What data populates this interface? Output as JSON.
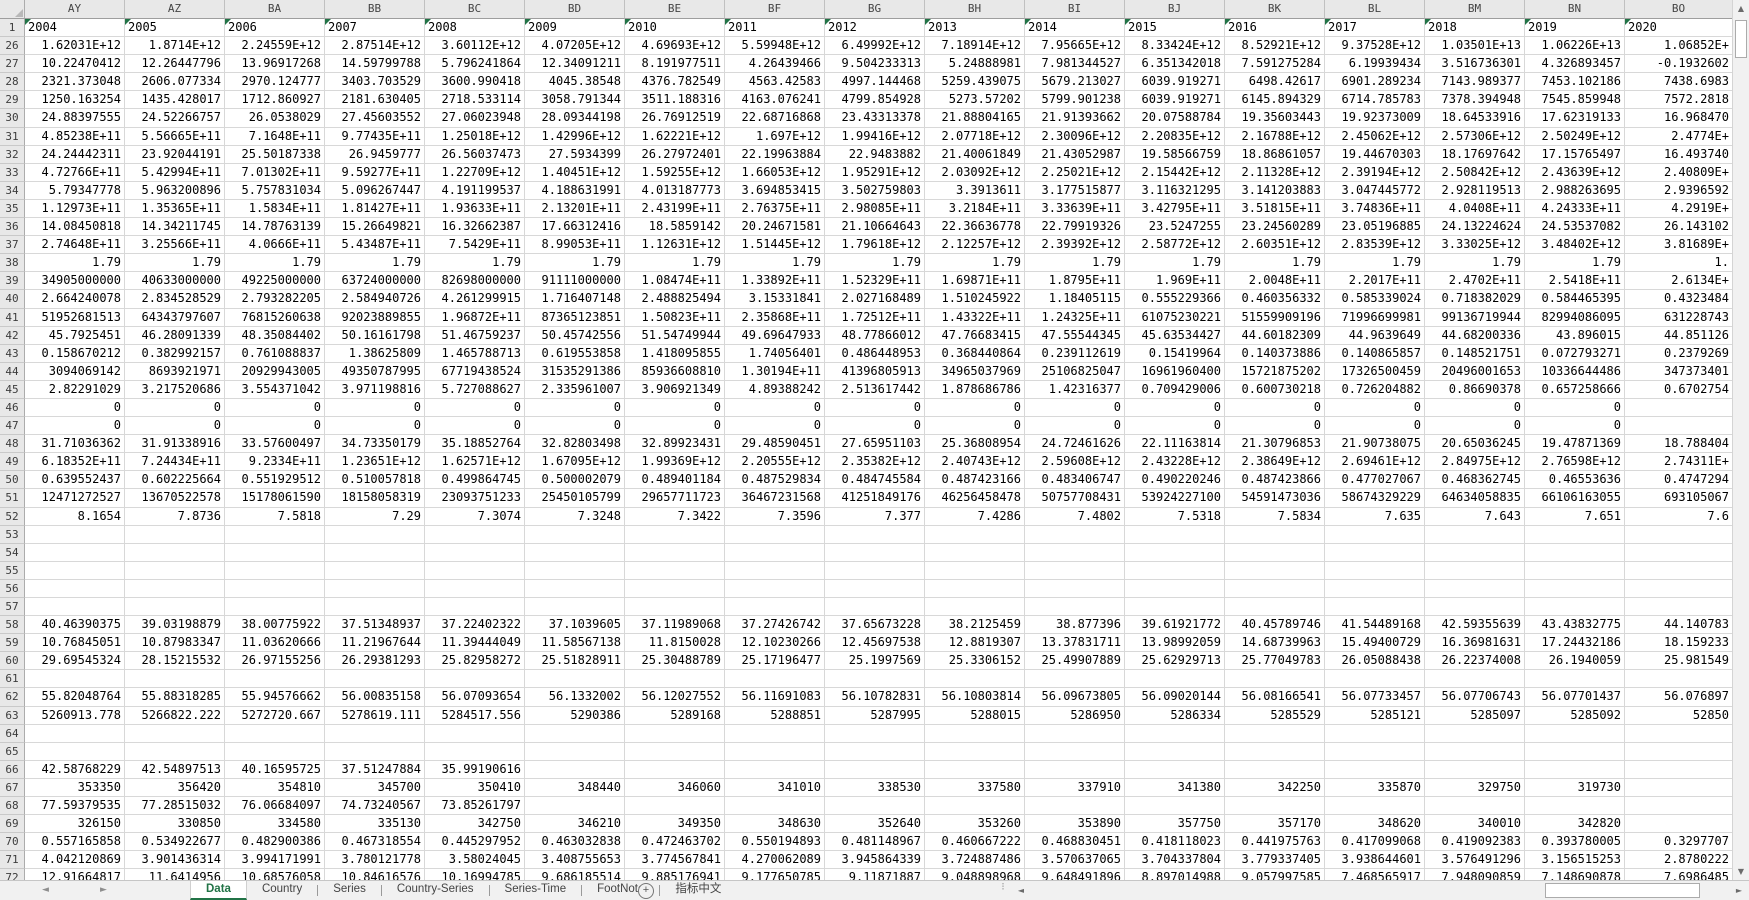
{
  "colors": {
    "accent_green": "#217346",
    "flag_triangle_green": "#217346",
    "header_bg": "#E8E8E8",
    "gridline": "#D8D8D8",
    "tabbar_bg": "#F1F1F1"
  },
  "icons": {
    "select_all_corner": "corner-triangle",
    "tab_nav_left": "◄",
    "tab_nav_right": "►",
    "add_sheet": "+",
    "scroll_up": "▲",
    "scroll_down": "▼",
    "scroll_left": "◄",
    "scroll_right": "►"
  },
  "tabs": {
    "items": [
      {
        "label": "Data",
        "active": true
      },
      {
        "label": "Country",
        "active": false
      },
      {
        "label": "Series",
        "active": false
      },
      {
        "label": "Country-Series",
        "active": false
      },
      {
        "label": "Series-Time",
        "active": false
      },
      {
        "label": "FootNote",
        "active": false
      },
      {
        "label": "指标中文",
        "active": false
      }
    ]
  },
  "sheet": {
    "column_letters": [
      "AY",
      "AZ",
      "BA",
      "BB",
      "BC",
      "BD",
      "BE",
      "BF",
      "BG",
      "BH",
      "BI",
      "BJ",
      "BK",
      "BL",
      "BM",
      "BN",
      "BO"
    ],
    "header_row": {
      "number": "1",
      "has_flag": true,
      "years": [
        "2004",
        "2005",
        "2006",
        "2007",
        "2008",
        "2009",
        "2010",
        "2011",
        "2012",
        "2013",
        "2014",
        "2015",
        "2016",
        "2017",
        "2018",
        "2019",
        "2020"
      ]
    },
    "rows": [
      {
        "n": "26",
        "cells": [
          "1.62031E+12",
          "1.8714E+12",
          "2.24559E+12",
          "2.87514E+12",
          "3.60112E+12",
          "4.07205E+12",
          "4.69693E+12",
          "5.59948E+12",
          "6.49992E+12",
          "7.18914E+12",
          "7.95665E+12",
          "8.33424E+12",
          "8.52921E+12",
          "9.37528E+12",
          "1.03501E+13",
          "1.06226E+13",
          "1.06852E+"
        ]
      },
      {
        "n": "27",
        "cells": [
          "10.22470412",
          "12.26447796",
          "13.96917268",
          "14.59799788",
          "5.796241864",
          "12.34091211",
          "8.191977511",
          "4.26439466",
          "9.504233313",
          "5.24888981",
          "7.981344527",
          "6.351342018",
          "7.591275284",
          "6.19939434",
          "3.516736301",
          "4.326893457",
          "-0.1932602"
        ]
      },
      {
        "n": "28",
        "cells": [
          "2321.373048",
          "2606.077334",
          "2970.124777",
          "3403.703529",
          "3600.990418",
          "4045.38548",
          "4376.782549",
          "4563.42583",
          "4997.144468",
          "5259.439075",
          "5679.213027",
          "6039.919271",
          "6498.42617",
          "6901.289234",
          "7143.989377",
          "7453.102186",
          "7438.6983"
        ]
      },
      {
        "n": "29",
        "cells": [
          "1250.163254",
          "1435.428017",
          "1712.860927",
          "2181.630405",
          "2718.533114",
          "3058.791344",
          "3511.188316",
          "4163.076241",
          "4799.854928",
          "5273.57202",
          "5799.901238",
          "6039.919271",
          "6145.894329",
          "6714.785783",
          "7378.394948",
          "7545.859948",
          "7572.2818"
        ]
      },
      {
        "n": "30",
        "cells": [
          "24.88397555",
          "24.52266757",
          "26.0538029",
          "27.45603552",
          "27.06023948",
          "28.09344198",
          "26.76912519",
          "22.68716868",
          "23.43313378",
          "21.88804165",
          "21.91393662",
          "20.07588784",
          "19.35603443",
          "19.92373009",
          "18.64533916",
          "17.62319133",
          "16.968470"
        ]
      },
      {
        "n": "31",
        "cells": [
          "4.85238E+11",
          "5.56665E+11",
          "7.1648E+11",
          "9.77435E+11",
          "1.25018E+12",
          "1.42996E+12",
          "1.62221E+12",
          "1.697E+12",
          "1.99416E+12",
          "2.07718E+12",
          "2.30096E+12",
          "2.20835E+12",
          "2.16788E+12",
          "2.45062E+12",
          "2.57306E+12",
          "2.50249E+12",
          "2.4774E+"
        ]
      },
      {
        "n": "32",
        "cells": [
          "24.24442311",
          "23.92044191",
          "25.50187338",
          "26.9459777",
          "26.56037473",
          "27.5934399",
          "26.27972401",
          "22.19963884",
          "22.9483882",
          "21.40061849",
          "21.43052987",
          "19.58566759",
          "18.86861057",
          "19.44670303",
          "18.17697642",
          "17.15765497",
          "16.493740"
        ]
      },
      {
        "n": "33",
        "cells": [
          "4.72766E+11",
          "5.42994E+11",
          "7.01302E+11",
          "9.59277E+11",
          "1.22709E+12",
          "1.40451E+12",
          "1.59255E+12",
          "1.66053E+12",
          "1.95291E+12",
          "2.03092E+12",
          "2.25021E+12",
          "2.15442E+12",
          "2.11328E+12",
          "2.39194E+12",
          "2.50842E+12",
          "2.43639E+12",
          "2.40809E+"
        ]
      },
      {
        "n": "34",
        "cells": [
          "5.79347778",
          "5.963200896",
          "5.757831034",
          "5.096267447",
          "4.191199537",
          "4.188631991",
          "4.013187773",
          "3.694853415",
          "3.502759803",
          "3.3913611",
          "3.177515877",
          "3.116321295",
          "3.141203883",
          "3.047445772",
          "2.928119513",
          "2.988263695",
          "2.9396592"
        ]
      },
      {
        "n": "35",
        "cells": [
          "1.12973E+11",
          "1.35365E+11",
          "1.5834E+11",
          "1.81427E+11",
          "1.93633E+11",
          "2.13201E+11",
          "2.43199E+11",
          "2.76375E+11",
          "2.98085E+11",
          "3.2184E+11",
          "3.33639E+11",
          "3.42795E+11",
          "3.51815E+11",
          "3.74836E+11",
          "4.0408E+11",
          "4.24333E+11",
          "4.2919E+"
        ]
      },
      {
        "n": "36",
        "cells": [
          "14.08450818",
          "14.34211745",
          "14.78763139",
          "15.26649821",
          "16.32662387",
          "17.66312416",
          "18.5859142",
          "20.24671581",
          "21.10664643",
          "22.36636778",
          "22.79919326",
          "23.5247255",
          "23.24560289",
          "23.05196885",
          "24.13224624",
          "24.53537082",
          "26.143102"
        ]
      },
      {
        "n": "37",
        "cells": [
          "2.74648E+11",
          "3.25566E+11",
          "4.0666E+11",
          "5.43487E+11",
          "7.5429E+11",
          "8.99053E+11",
          "1.12631E+12",
          "1.51445E+12",
          "1.79618E+12",
          "2.12257E+12",
          "2.39392E+12",
          "2.58772E+12",
          "2.60351E+12",
          "2.83539E+12",
          "3.33025E+12",
          "3.48402E+12",
          "3.81689E+"
        ]
      },
      {
        "n": "38",
        "cells": [
          "1.79",
          "1.79",
          "1.79",
          "1.79",
          "1.79",
          "1.79",
          "1.79",
          "1.79",
          "1.79",
          "1.79",
          "1.79",
          "1.79",
          "1.79",
          "1.79",
          "1.79",
          "1.79",
          "1."
        ]
      },
      {
        "n": "39",
        "cells": [
          "34905000000",
          "40633000000",
          "49225000000",
          "63724000000",
          "82698000000",
          "91111000000",
          "1.08474E+11",
          "1.33892E+11",
          "1.52329E+11",
          "1.69871E+11",
          "1.8795E+11",
          "1.969E+11",
          "2.0048E+11",
          "2.2017E+11",
          "2.4702E+11",
          "2.5418E+11",
          "2.6134E+"
        ]
      },
      {
        "n": "40",
        "cells": [
          "2.664240078",
          "2.834528529",
          "2.793282205",
          "2.584940726",
          "4.261299915",
          "1.716407148",
          "2.488825494",
          "3.15331841",
          "2.027168489",
          "1.510245922",
          "1.18405115",
          "0.555229366",
          "0.460356332",
          "0.585339024",
          "0.718382029",
          "0.584465395",
          "0.4323484"
        ]
      },
      {
        "n": "41",
        "cells": [
          "51952681513",
          "64343797607",
          "76815260638",
          "92023889855",
          "1.96872E+11",
          "87365123851",
          "1.50823E+11",
          "2.35868E+11",
          "1.72512E+11",
          "1.43322E+11",
          "1.24325E+11",
          "61075230221",
          "51559909196",
          "71996699981",
          "99136719944",
          "82994086095",
          "631228743"
        ]
      },
      {
        "n": "42",
        "cells": [
          "45.7925451",
          "46.28091339",
          "48.35084402",
          "50.16161798",
          "51.46759237",
          "50.45742556",
          "51.54749944",
          "49.69647933",
          "48.77866012",
          "47.76683415",
          "47.55544345",
          "45.63534427",
          "44.60182309",
          "44.9639649",
          "44.68200336",
          "43.896015",
          "44.851126"
        ]
      },
      {
        "n": "43",
        "cells": [
          "0.158670212",
          "0.382992157",
          "0.761088837",
          "1.38625809",
          "1.465788713",
          "0.619553858",
          "1.418095855",
          "1.74056401",
          "0.486448953",
          "0.368440864",
          "0.239112619",
          "0.15419964",
          "0.140373886",
          "0.140865857",
          "0.148521751",
          "0.072793271",
          "0.2379269"
        ]
      },
      {
        "n": "44",
        "cells": [
          "3094069142",
          "8693921971",
          "20929943005",
          "49350787995",
          "67719438524",
          "31535291386",
          "85936608810",
          "1.30194E+11",
          "41396805913",
          "34965037969",
          "25106825047",
          "16961960400",
          "15721875202",
          "17326500459",
          "20496001653",
          "10336644486",
          "347373401"
        ]
      },
      {
        "n": "45",
        "cells": [
          "2.82291029",
          "3.217520686",
          "3.554371042",
          "3.971198816",
          "5.727088627",
          "2.335961007",
          "3.906921349",
          "4.89388242",
          "2.513617442",
          "1.878686786",
          "1.42316377",
          "0.709429006",
          "0.600730218",
          "0.726204882",
          "0.86690378",
          "0.657258666",
          "0.6702754"
        ]
      },
      {
        "n": "46",
        "cells": [
          "0",
          "0",
          "0",
          "0",
          "0",
          "0",
          "0",
          "0",
          "0",
          "0",
          "0",
          "0",
          "0",
          "0",
          "0",
          "0",
          ""
        ]
      },
      {
        "n": "47",
        "cells": [
          "0",
          "0",
          "0",
          "0",
          "0",
          "0",
          "0",
          "0",
          "0",
          "0",
          "0",
          "0",
          "0",
          "0",
          "0",
          "0",
          ""
        ]
      },
      {
        "n": "48",
        "cells": [
          "31.71036362",
          "31.91338916",
          "33.57600497",
          "34.73350179",
          "35.18852764",
          "32.82803498",
          "32.89923431",
          "29.48590451",
          "27.65951103",
          "25.36808954",
          "24.72461626",
          "22.11163814",
          "21.30796853",
          "21.90738075",
          "20.65036245",
          "19.47871369",
          "18.788404"
        ]
      },
      {
        "n": "49",
        "cells": [
          "6.18352E+11",
          "7.24434E+11",
          "9.2334E+11",
          "1.23651E+12",
          "1.62571E+12",
          "1.67095E+12",
          "1.99369E+12",
          "2.20555E+12",
          "2.35382E+12",
          "2.40743E+12",
          "2.59608E+12",
          "2.43228E+12",
          "2.38649E+12",
          "2.69461E+12",
          "2.84975E+12",
          "2.76598E+12",
          "2.74311E+"
        ]
      },
      {
        "n": "50",
        "cells": [
          "0.639552437",
          "0.602225664",
          "0.551929512",
          "0.510057818",
          "0.499864745",
          "0.500002079",
          "0.489401184",
          "0.487529834",
          "0.484745584",
          "0.487423166",
          "0.483406747",
          "0.490220246",
          "0.487423866",
          "0.477027067",
          "0.468362745",
          "0.46553636",
          "0.4747294"
        ]
      },
      {
        "n": "51",
        "cells": [
          "12471272527",
          "13670522578",
          "15178061590",
          "18158058319",
          "23093751233",
          "25450105799",
          "29657711723",
          "36467231568",
          "41251849176",
          "46256458478",
          "50757708431",
          "53924227100",
          "54591473036",
          "58674329229",
          "64634058835",
          "66106163055",
          "693105067"
        ]
      },
      {
        "n": "52",
        "cells": [
          "8.1654",
          "7.8736",
          "7.5818",
          "7.29",
          "7.3074",
          "7.3248",
          "7.3422",
          "7.3596",
          "7.377",
          "7.4286",
          "7.4802",
          "7.5318",
          "7.5834",
          "7.635",
          "7.643",
          "7.651",
          "7.6"
        ]
      },
      {
        "n": "53",
        "cells": []
      },
      {
        "n": "54",
        "cells": []
      },
      {
        "n": "55",
        "cells": []
      },
      {
        "n": "56",
        "cells": []
      },
      {
        "n": "57",
        "cells": []
      },
      {
        "n": "58",
        "cells": [
          "40.46390375",
          "39.03198879",
          "38.00775922",
          "37.51348937",
          "37.22402322",
          "37.1039605",
          "37.11989068",
          "37.27426742",
          "37.65673228",
          "38.2125459",
          "38.877396",
          "39.61921772",
          "40.45789746",
          "41.54489168",
          "42.59355639",
          "43.43832775",
          "44.140783"
        ]
      },
      {
        "n": "59",
        "cells": [
          "10.76845051",
          "10.87983347",
          "11.03620666",
          "11.21967644",
          "11.39444049",
          "11.58567138",
          "11.8150028",
          "12.10230266",
          "12.45697538",
          "12.8819307",
          "13.37831711",
          "13.98992059",
          "14.68739963",
          "15.49400729",
          "16.36981631",
          "17.24432186",
          "18.159233"
        ]
      },
      {
        "n": "60",
        "cells": [
          "29.69545324",
          "28.15215532",
          "26.97155256",
          "26.29381293",
          "25.82958272",
          "25.51828911",
          "25.30488789",
          "25.17196477",
          "25.1997569",
          "25.3306152",
          "25.49907889",
          "25.62929713",
          "25.77049783",
          "26.05088438",
          "26.22374008",
          "26.1940059",
          "25.981549"
        ]
      },
      {
        "n": "61",
        "cells": []
      },
      {
        "n": "62",
        "cells": [
          "55.82048764",
          "55.88318285",
          "55.94576662",
          "56.00835158",
          "56.07093654",
          "56.1332002",
          "56.12027552",
          "56.11691083",
          "56.10782831",
          "56.10803814",
          "56.09673805",
          "56.09020144",
          "56.08166541",
          "56.07733457",
          "56.07706743",
          "56.07701437",
          "56.076897"
        ]
      },
      {
        "n": "63",
        "cells": [
          "5260913.778",
          "5266822.222",
          "5272720.667",
          "5278619.111",
          "5284517.556",
          "5290386",
          "5289168",
          "5288851",
          "5287995",
          "5288015",
          "5286950",
          "5286334",
          "5285529",
          "5285121",
          "5285097",
          "5285092",
          "52850"
        ]
      },
      {
        "n": "64",
        "cells": []
      },
      {
        "n": "65",
        "cells": []
      },
      {
        "n": "66",
        "cells": [
          "42.58768229",
          "42.54897513",
          "40.16595725",
          "37.51247884",
          "35.99190616",
          "",
          "",
          "",
          "",
          "",
          "",
          "",
          "",
          "",
          "",
          "",
          ""
        ]
      },
      {
        "n": "67",
        "cells": [
          "353350",
          "356420",
          "354810",
          "345700",
          "350410",
          "348440",
          "346060",
          "341010",
          "338530",
          "337580",
          "337910",
          "341380",
          "342250",
          "335870",
          "329750",
          "319730",
          ""
        ]
      },
      {
        "n": "68",
        "cells": [
          "77.59379535",
          "77.28515032",
          "76.06684097",
          "74.73240567",
          "73.85261797",
          "",
          "",
          "",
          "",
          "",
          "",
          "",
          "",
          "",
          "",
          "",
          ""
        ]
      },
      {
        "n": "69",
        "cells": [
          "326150",
          "330850",
          "334580",
          "335130",
          "342750",
          "346210",
          "349350",
          "348630",
          "352640",
          "353260",
          "353890",
          "357750",
          "357170",
          "348620",
          "340010",
          "342820",
          ""
        ]
      },
      {
        "n": "70",
        "cells": [
          "0.557165858",
          "0.534922677",
          "0.482900386",
          "0.467318554",
          "0.445297952",
          "0.463032838",
          "0.472463702",
          "0.550194893",
          "0.481148967",
          "0.460667222",
          "0.468830451",
          "0.418118023",
          "0.441975763",
          "0.417099068",
          "0.419092383",
          "0.393780005",
          "0.3297707"
        ]
      },
      {
        "n": "71",
        "cells": [
          "4.042120869",
          "3.901436314",
          "3.994171991",
          "3.780121778",
          "3.58024045",
          "3.408755653",
          "3.774567841",
          "4.270062089",
          "3.945864339",
          "3.724887486",
          "3.570637065",
          "3.704337804",
          "3.779337405",
          "3.938644601",
          "3.576491296",
          "3.156515253",
          "2.8780222"
        ]
      },
      {
        "n": "72",
        "cells": [
          "12.91664817",
          "11.6414956",
          "10.68576058",
          "10.84616576",
          "10.16994785",
          "9.686185514",
          "9.885176941",
          "9.177650785",
          "9.11871887",
          "9.048898968",
          "9.648491896",
          "8.897014988",
          "9.057997585",
          "7.468565917",
          "7.948090859",
          "7.148690878",
          "7.6986485"
        ]
      }
    ]
  }
}
